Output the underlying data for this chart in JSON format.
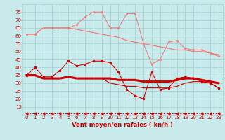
{
  "x": [
    0,
    1,
    2,
    3,
    4,
    5,
    6,
    7,
    8,
    9,
    10,
    11,
    12,
    13,
    14,
    15,
    16,
    17,
    18,
    19,
    20,
    21,
    22,
    23
  ],
  "series_light1": [
    61,
    61,
    65,
    65,
    65,
    65,
    67,
    72,
    75,
    75,
    65,
    65,
    74,
    74,
    55,
    42,
    45,
    56,
    57,
    52,
    51,
    51,
    49,
    47
  ],
  "series_light2": [
    61,
    61,
    65,
    65,
    65,
    65,
    64,
    63,
    62,
    61,
    60,
    59,
    57,
    56,
    55,
    54,
    53,
    52,
    51,
    51,
    50,
    50,
    49,
    48
  ],
  "series_dark1": [
    35,
    40,
    34,
    34,
    38,
    44,
    41,
    42,
    44,
    44,
    43,
    37,
    26,
    22,
    20,
    37,
    26,
    27,
    33,
    34,
    33,
    31,
    30,
    27
  ],
  "series_dark2": [
    35,
    35,
    33,
    33,
    33,
    34,
    33,
    33,
    33,
    33,
    33,
    32,
    32,
    32,
    31,
    31,
    31,
    31,
    32,
    33,
    33,
    32,
    31,
    30
  ],
  "series_dark3": [
    35,
    35,
    33,
    33,
    33,
    34,
    33,
    33,
    33,
    33,
    30,
    29,
    28,
    28,
    27,
    27,
    27,
    27,
    28,
    30,
    31,
    31,
    30,
    27
  ],
  "series_dashed": [
    11,
    11,
    11,
    11,
    11,
    11,
    11,
    11,
    11,
    11,
    11,
    11,
    11,
    11,
    11,
    11,
    11,
    11,
    11,
    11,
    11,
    11,
    11,
    11
  ],
  "ylim": [
    10,
    80
  ],
  "yticks": [
    15,
    20,
    25,
    30,
    35,
    40,
    45,
    50,
    55,
    60,
    65,
    70,
    75
  ],
  "xlabel": "Vent moyen/en rafales ( kn/h )",
  "bg_color": "#c8eaea",
  "grid_color": "#a8d4d4",
  "light_pink": "#f08080",
  "dark_red": "#cc0000",
  "medium_red": "#cc0000",
  "dashed_color": "#cc0000",
  "label_color": "#cc0000",
  "tick_fontsize": 5.0,
  "xlabel_fontsize": 6.0
}
